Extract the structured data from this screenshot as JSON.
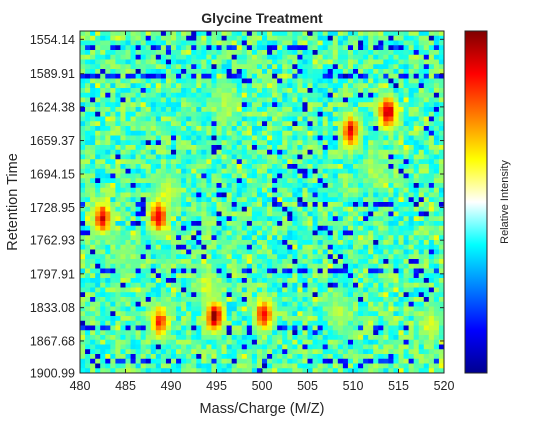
{
  "chart_data": {
    "type": "heatmap",
    "title": "Glycine Treatment",
    "xlabel": "Mass/Charge (M/Z)",
    "ylabel": "Retention Time",
    "colorbar_label": "Relative Intensity",
    "colormap": "jet",
    "xlim": [
      480,
      520
    ],
    "ylim": [
      1545.5,
      1900.99
    ],
    "y_reversed": true,
    "x_ticks": [
      480,
      485,
      490,
      495,
      500,
      505,
      510,
      515,
      520
    ],
    "y_ticks": [
      "1554.14",
      "1589.91",
      "1624.38",
      "1659.37",
      "1694.15",
      "1728.95",
      "1762.93",
      "1797.91",
      "1833.08",
      "1867.68",
      "1900.99"
    ],
    "grid": {
      "columns": 72,
      "rows": 72,
      "mz_step": 0.5556,
      "rt_step": 4.95
    },
    "hotspots": [
      {
        "mz": 482.5,
        "rt": 1740,
        "intensity": 0.9
      },
      {
        "mz": 488.6,
        "rt": 1738,
        "intensity": 0.92
      },
      {
        "mz": 489.5,
        "rt": 1714,
        "intensity": 0.6
      },
      {
        "mz": 494.8,
        "rt": 1842,
        "intensity": 0.97
      },
      {
        "mz": 494.0,
        "rt": 1810,
        "intensity": 0.6
      },
      {
        "mz": 488.8,
        "rt": 1848,
        "intensity": 0.85
      },
      {
        "mz": 500.2,
        "rt": 1840,
        "intensity": 0.88
      },
      {
        "mz": 508.5,
        "rt": 1838,
        "intensity": 0.55
      },
      {
        "mz": 509.7,
        "rt": 1650,
        "intensity": 0.9
      },
      {
        "mz": 513.8,
        "rt": 1630,
        "intensity": 0.96
      },
      {
        "mz": 496.0,
        "rt": 1622,
        "intensity": 0.55
      },
      {
        "mz": 512.3,
        "rt": 1688,
        "intensity": 0.55
      },
      {
        "mz": 518.5,
        "rt": 1850,
        "intensity": 0.6
      },
      {
        "mz": 485.0,
        "rt": 1780,
        "intensity": 0.5
      }
    ],
    "dark_bands_rt": [
      1563,
      1594,
      1725,
      1793,
      1855,
      1887
    ],
    "background_intensity": 0.45
  }
}
